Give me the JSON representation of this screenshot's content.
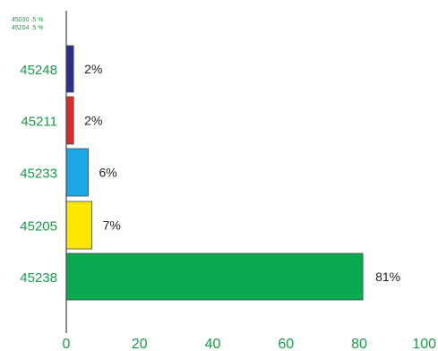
{
  "chart_data": {
    "type": "bar",
    "orientation": "horizontal",
    "categories": [
      "45248",
      "45211",
      "45233",
      "45205",
      "45238"
    ],
    "values": [
      2,
      2,
      6,
      7,
      81
    ],
    "value_labels": [
      "2%",
      "2%",
      "6%",
      "7%",
      "81%"
    ],
    "colors": [
      "#2b2f8f",
      "#e02a2a",
      "#1aa7e8",
      "#ffe600",
      "#0aa84f"
    ],
    "small_labels": [
      "45030 .5 %",
      "45204 .5 %"
    ],
    "xticks": [
      0,
      20,
      40,
      60,
      80,
      100
    ],
    "xlim": [
      0,
      100
    ],
    "title": "",
    "xlabel": "",
    "ylabel": ""
  }
}
